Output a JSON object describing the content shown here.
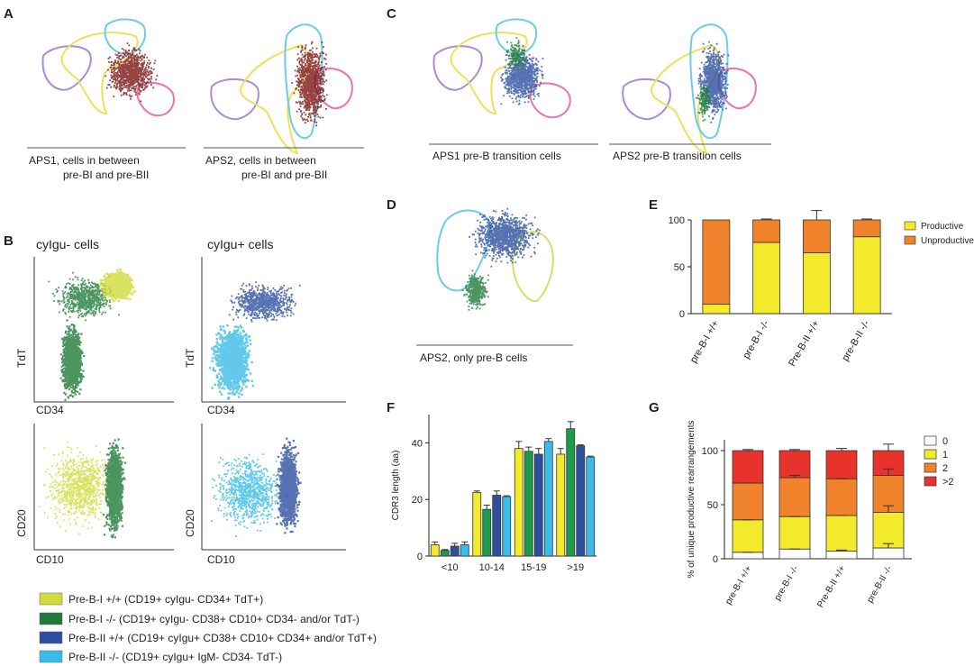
{
  "panels": {
    "A": "A",
    "B": "B",
    "C": "C",
    "D": "D",
    "E": "E",
    "F": "F",
    "G": "G"
  },
  "panel_a": {
    "captions": [
      {
        "line1": "APS1, cells in between",
        "line2": "pre-BI and pre-BII"
      },
      {
        "line1": "APS2, cells in between",
        "line2": "pre-BI and pre-BII"
      }
    ]
  },
  "panel_c": {
    "captions": [
      "APS1 pre-B transition cells",
      "APS2 pre-B transition cells"
    ]
  },
  "panel_d": {
    "caption": "APS2, only pre-B cells"
  },
  "panel_b": {
    "col_titles": [
      "cyIgu- cells",
      "cyIgu+ cells"
    ],
    "axis_labels": {
      "tdt": "TdT",
      "cd34": "CD34",
      "cd20": "CD20",
      "cd10": "CD10"
    }
  },
  "legend": [
    {
      "label": "Pre-B-I +/+ (CD19+ cyIgu- CD34+ TdT+)",
      "color": "#cfdc3a"
    },
    {
      "label": "Pre-B-I -/- (CD19+ cyIgu-  CD38+ CD10+ CD34- and/or TdT-)",
      "color": "#1f7a3a"
    },
    {
      "label": "Pre-B-II +/+ (CD19+ cyIgu+ CD38+ CD10+ CD34+ and/or TdT+)",
      "color": "#2d4fa0"
    },
    {
      "label": "Pre-B-II -/- (CD19+ cyIgu+ IgM- CD34- TdT-)",
      "color": "#3bbbe8"
    }
  ],
  "colors": {
    "productive": "#f2ea2a",
    "unproductive": "#f0822b",
    "c0": "#ffffff",
    "c1": "#f2ea2a",
    "c2": "#f0822b",
    "c3": "#e8332c"
  },
  "chart_data": [
    {
      "id": "E",
      "type": "bar",
      "stacked": true,
      "categories": [
        "pre-B-I +/+",
        "pre-B-I -/-",
        "Pre-B-II +/+",
        "pre-B-II -/-"
      ],
      "series": [
        {
          "name": "Productive",
          "values": [
            10,
            76,
            65,
            82
          ],
          "error": [
            0,
            1,
            10,
            1
          ],
          "color": "#f2ea2a"
        },
        {
          "name": "Unproductive",
          "values": [
            90,
            24,
            35,
            18
          ],
          "error": [
            0,
            1,
            10,
            1
          ],
          "color": "#f0822b"
        }
      ],
      "ylim": [
        0,
        100
      ],
      "yticks": [
        0,
        50,
        100
      ],
      "legend_labels": [
        "Productive",
        "Unproductive"
      ]
    },
    {
      "id": "F",
      "type": "bar",
      "categories": [
        "<10",
        "10-14",
        "15-19",
        ">19"
      ],
      "series": [
        {
          "name": "Pre-B-I +/+",
          "values": [
            4,
            22.5,
            38,
            36
          ],
          "error": [
            1,
            0.5,
            2.5,
            2
          ],
          "color": "#f2ea2a"
        },
        {
          "name": "Pre-B-I -/-",
          "values": [
            2,
            16.5,
            37,
            45
          ],
          "error": [
            0.3,
            1.5,
            1.5,
            2.5
          ],
          "color": "#1f9a4a"
        },
        {
          "name": "Pre-B-II +/+",
          "values": [
            3.5,
            21.5,
            36,
            39
          ],
          "error": [
            1,
            1.5,
            2,
            0.3
          ],
          "color": "#2d4fa0"
        },
        {
          "name": "Pre-B-II -/-",
          "values": [
            4,
            21,
            40.5,
            35
          ],
          "error": [
            1,
            0.3,
            1,
            0.3
          ],
          "color": "#3bbbe8"
        }
      ],
      "ylim": [
        0,
        50
      ],
      "yticks": [
        0,
        20,
        40
      ],
      "ylabel": "CDR3 length (aa)"
    },
    {
      "id": "G",
      "type": "bar",
      "stacked": true,
      "categories": [
        "pre-B-I +/+",
        "pre-B-I -/-",
        "Pre-B-II +/+",
        "pre-B-II -/-"
      ],
      "series": [
        {
          "name": "0",
          "values": [
            6,
            9,
            7,
            10
          ],
          "color": "#ffffff"
        },
        {
          "name": "1",
          "values": [
            30,
            30,
            33,
            33
          ],
          "color": "#f2ea2a"
        },
        {
          "name": "2",
          "values": [
            34,
            36,
            34,
            34
          ],
          "color": "#f0822b"
        },
        {
          "name": ">2",
          "values": [
            30,
            25,
            26,
            23
          ],
          "color": "#e8332c"
        }
      ],
      "error_tops": [
        [
          6,
          36,
          70,
          101
        ],
        [
          9,
          39,
          77,
          101
        ],
        [
          8,
          40,
          74,
          102
        ],
        [
          14,
          49,
          83,
          106
        ]
      ],
      "ylim": [
        0,
        110
      ],
      "yticks": [
        0,
        50,
        100
      ],
      "ylabel": "% of unique productive rearrangements",
      "legend_labels": [
        "0",
        "1",
        "2",
        ">2"
      ]
    }
  ]
}
